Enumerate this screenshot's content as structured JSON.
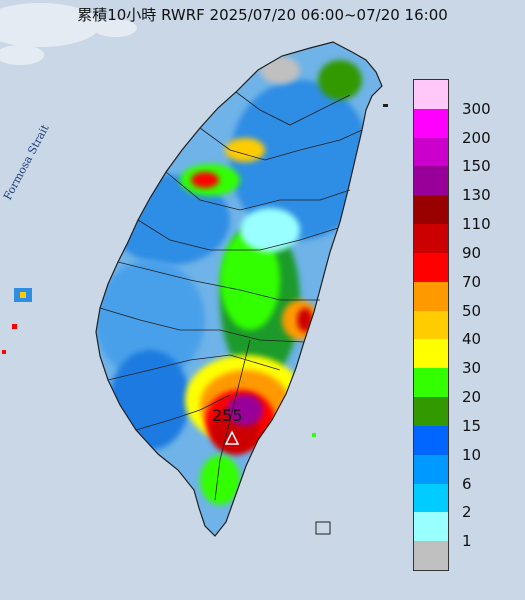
{
  "title": "累積10小時 RWRF 2025/07/20 06:00~07/20 16:00",
  "strait_label": "Formosa Strait",
  "max_marker": {
    "value": "255",
    "icon": "triangle-marker-icon"
  },
  "legend": {
    "items": [
      {
        "label": "300",
        "color": "#ffc8f8"
      },
      {
        "label": "200",
        "color": "#ff00ff"
      },
      {
        "label": "150",
        "color": "#cc00cc"
      },
      {
        "label": "130",
        "color": "#990099"
      },
      {
        "label": "110",
        "color": "#990000"
      },
      {
        "label": "90",
        "color": "#cc0000"
      },
      {
        "label": "70",
        "color": "#ff0000"
      },
      {
        "label": "50",
        "color": "#ff9900"
      },
      {
        "label": "40",
        "color": "#ffcc00"
      },
      {
        "label": "30",
        "color": "#ffff00"
      },
      {
        "label": "20",
        "color": "#33ff00"
      },
      {
        "label": "15",
        "color": "#339900"
      },
      {
        "label": "10",
        "color": "#0066ff"
      },
      {
        "label": "6",
        "color": "#0099ff"
      },
      {
        "label": "2",
        "color": "#00ccff"
      },
      {
        "label": "1",
        "color": "#99ffff"
      },
      {
        "label": "",
        "color": "#c0c0c0"
      }
    ]
  },
  "colors": {
    "sea": "#c9d7e6",
    "cloud": "#e9eef4",
    "border": "#202020"
  }
}
